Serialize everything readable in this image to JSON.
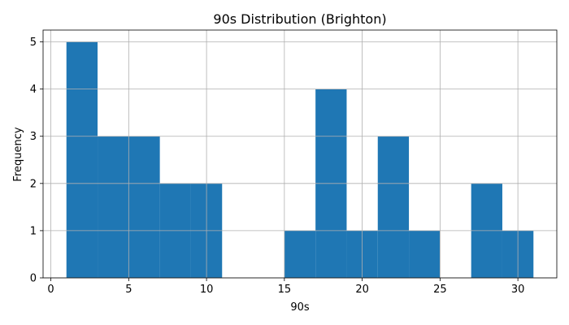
{
  "chart_data": {
    "type": "bar",
    "title": "90s Distribution (Brighton)",
    "xlabel": "90s",
    "ylabel": "Frequency",
    "bins": [
      {
        "start": 1,
        "end": 3,
        "count": 5
      },
      {
        "start": 3,
        "end": 5,
        "count": 3
      },
      {
        "start": 5,
        "end": 7,
        "count": 3
      },
      {
        "start": 7,
        "end": 9,
        "count": 2
      },
      {
        "start": 9,
        "end": 11,
        "count": 2
      },
      {
        "start": 11,
        "end": 13,
        "count": 0
      },
      {
        "start": 13,
        "end": 15,
        "count": 0
      },
      {
        "start": 15,
        "end": 17,
        "count": 1
      },
      {
        "start": 17,
        "end": 19,
        "count": 4
      },
      {
        "start": 19,
        "end": 21,
        "count": 1
      },
      {
        "start": 21,
        "end": 23,
        "count": 3
      },
      {
        "start": 23,
        "end": 25,
        "count": 1
      },
      {
        "start": 25,
        "end": 27,
        "count": 0
      },
      {
        "start": 27,
        "end": 29,
        "count": 2
      },
      {
        "start": 29,
        "end": 31,
        "count": 1
      }
    ],
    "xlim": [
      -0.5,
      32.5
    ],
    "ylim": [
      0,
      5.25
    ],
    "xticks": [
      0,
      5,
      10,
      15,
      20,
      25,
      30
    ],
    "yticks": [
      0,
      1,
      2,
      3,
      4,
      5
    ],
    "grid": true,
    "bar_color": "#1f77b4"
  }
}
